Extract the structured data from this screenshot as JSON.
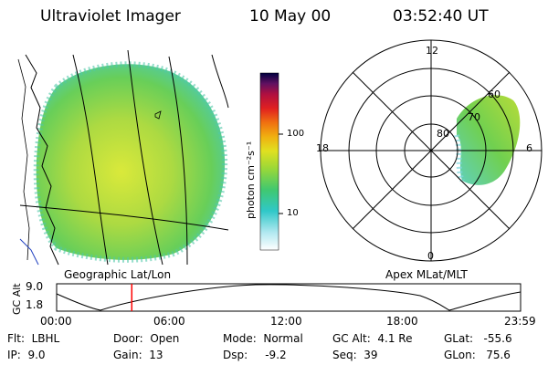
{
  "header": {
    "instrument": "Ultraviolet Imager",
    "date": "10 May 00",
    "time": "03:52:40 UT"
  },
  "colorbar": {
    "unit_label": "photon cm⁻²s⁻¹",
    "ticks": [
      "100",
      "10"
    ]
  },
  "polar": {
    "top_label": "12",
    "bottom_label": "0",
    "left_label": "18",
    "right_label": "6",
    "ring_labels": [
      "60",
      "70",
      "80"
    ]
  },
  "map_captions": {
    "left": "Geographic Lat/Lon",
    "right": "Apex MLat/MLT"
  },
  "altitude_plot": {
    "ylabel": "GC Alt",
    "yticks": [
      "9.0",
      "1.8"
    ],
    "xticks": [
      "00:00",
      "06:00",
      "12:00",
      "18:00",
      "23:59"
    ],
    "current_time_fraction": 0.162
  },
  "info": {
    "flt": "Flt:  LBHL",
    "ip": "IP:  9.0",
    "door": "Door:  Open",
    "gain": "Gain:  13",
    "mode": "Mode:  Normal",
    "dsp": "Dsp:     -9.2",
    "gcalt": "GC Alt:  4.1 Re",
    "seq": "Seq:  39",
    "glat": "GLat:   -55.6",
    "glon": "GLon:   75.6"
  },
  "colors": {
    "current_time_marker": "#ff0000"
  }
}
